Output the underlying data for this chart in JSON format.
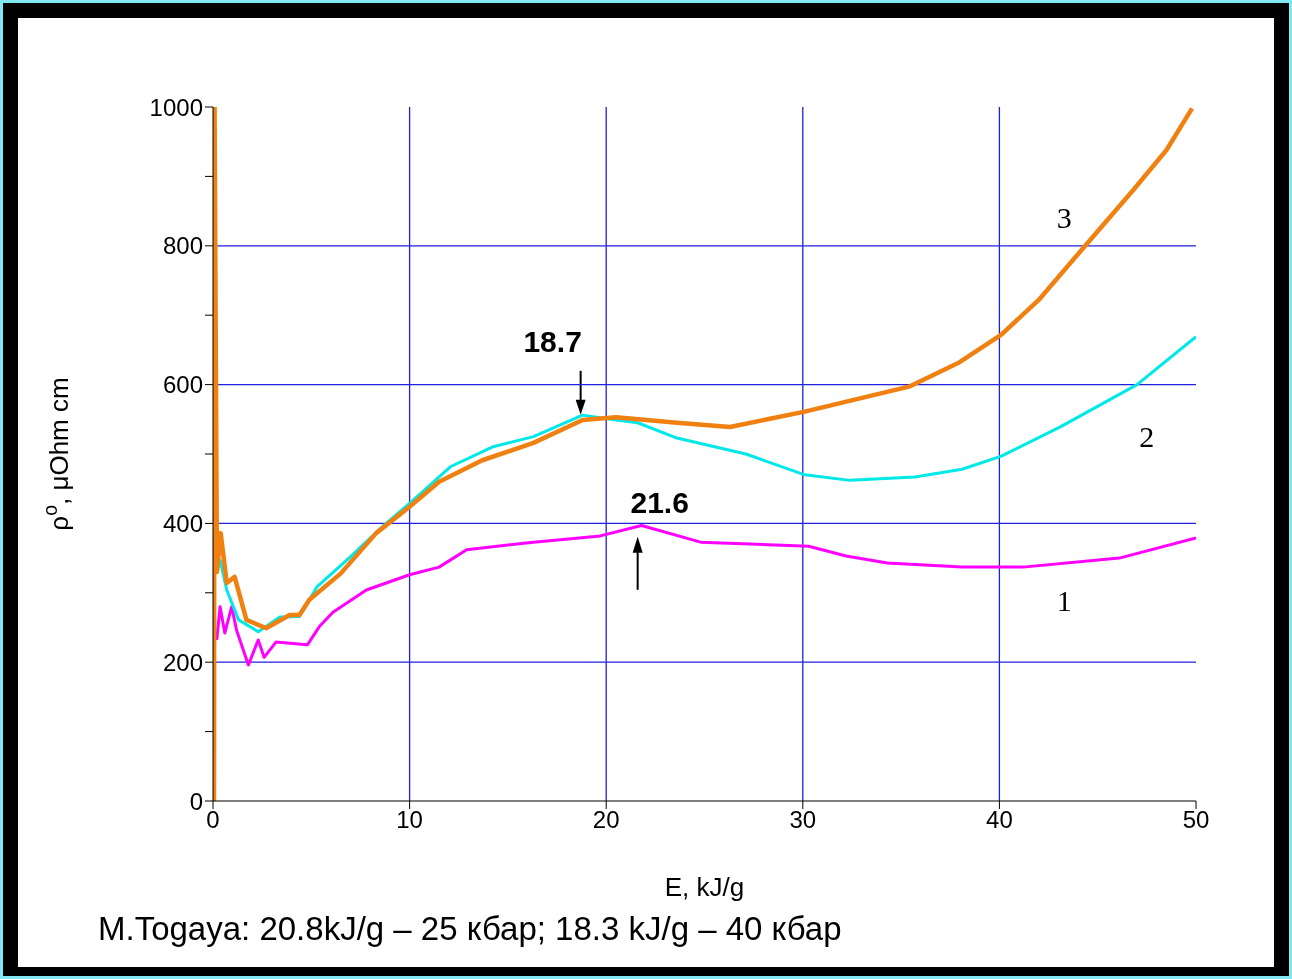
{
  "chart_data": {
    "type": "line",
    "xlabel": "E, kJ/g",
    "ylabel": "ρ$^{o}$, μOhm cm",
    "xlim": [
      0,
      50
    ],
    "xticks": [
      0,
      10,
      20,
      30,
      40,
      50
    ],
    "ylim": [
      0,
      1000
    ],
    "yticks": [
      0,
      {
        "value": 100,
        "label": null
      },
      200,
      {
        "value": 300,
        "label": null
      },
      400,
      {
        "value": 500,
        "label": null
      },
      600,
      {
        "value": 700,
        "label": null
      },
      800,
      {
        "value": 900,
        "label": null
      },
      1000
    ],
    "grid": true,
    "marker": "none",
    "line_style": "solid",
    "series": [
      {
        "name": "1",
        "color": "#ff00ff",
        "x": [
          0.19,
          0.36,
          0.6,
          0.95,
          1.2,
          1.8,
          2.3,
          2.6,
          3.2,
          4.8,
          5.4,
          6.1,
          7.8,
          10,
          11.5,
          12.9,
          16.3,
          19.7,
          21.8,
          24.8,
          30.3,
          32.2,
          34.3,
          38.1,
          41.2,
          46.1,
          50
        ],
        "values": [
          232,
          280,
          242,
          280,
          246,
          196,
          232,
          207,
          229,
          225,
          251,
          272,
          304,
          326,
          337,
          362,
          373,
          382,
          397,
          373,
          367,
          353,
          343,
          337,
          337,
          350,
          379
        ]
      },
      {
        "name": "2",
        "color": "#00e8e8",
        "x": [
          0.2,
          0.36,
          0.7,
          1.3,
          2.3,
          3.4,
          4.4,
          5.3,
          7,
          8.6,
          10,
          12.1,
          14.2,
          16.3,
          18.8,
          20.5,
          21.6,
          23.6,
          27.1,
          30.1,
          32.4,
          35.7,
          38.1,
          40.1,
          43.1,
          47,
          50
        ],
        "values": [
          330,
          347,
          304,
          261,
          244,
          265,
          266,
          309,
          352,
          395,
          429,
          482,
          510,
          525,
          556,
          549,
          545,
          523,
          500,
          470,
          462,
          467,
          478,
          497,
          539,
          600,
          669
        ]
      },
      {
        "name": "3",
        "color": "#f08010",
        "x": [
          0.05,
          0.08,
          0.2,
          0.39,
          0.7,
          1.1,
          1.7,
          2.7,
          3.9,
          4.4,
          4.9,
          6.5,
          8.3,
          10,
          11.5,
          13.7,
          16.3,
          18.8,
          20.5,
          23.6,
          26.3,
          30.1,
          35.4,
          37.9,
          40.1,
          42,
          44.3,
          46.8,
          48.5,
          49.8
        ],
        "values": [
          0,
          1000,
          330,
          386,
          314,
          323,
          261,
          249,
          268,
          268,
          290,
          328,
          386,
          424,
          460,
          491,
          516,
          549,
          553,
          545,
          539,
          561,
          597,
          631,
          672,
          722,
          798,
          880,
          938,
          998
        ]
      }
    ],
    "annotations": [
      {
        "text": "18.7",
        "x": 18.7,
        "y": 555
      },
      {
        "text": "21.6",
        "x": 21.6,
        "y": 398
      },
      "M.Togaya: 20.8kJ/g – 25 кбар; 18.3 kJ/g – 40 кбар"
    ]
  }
}
